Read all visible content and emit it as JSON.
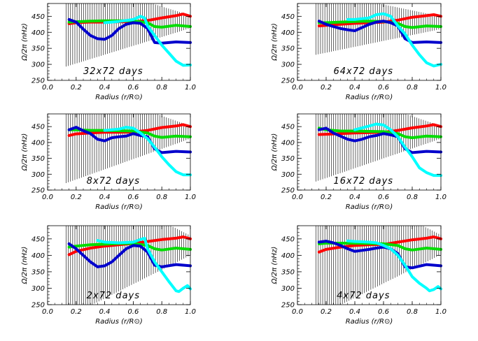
{
  "chart_data": [
    {
      "type": "line",
      "label": "32x72 days",
      "xlabel": "Radius (r/R⊙)",
      "ylabel": "Ω/2π (nHz)",
      "xlim": [
        0.0,
        1.0
      ],
      "ylim": [
        250,
        490
      ],
      "xticks": [
        "0.0",
        "0.2",
        "0.4",
        "0.6",
        "0.8",
        "1.0"
      ],
      "yticks": [
        "250",
        "300",
        "350",
        "400",
        "450"
      ],
      "series": [
        {
          "color": "#ff0000",
          "x": [
            0.15,
            0.2,
            0.3,
            0.4,
            0.5,
            0.6,
            0.7,
            0.8,
            0.9,
            0.95,
            1.0
          ],
          "y": [
            427,
            430,
            432,
            432,
            433,
            433,
            437,
            445,
            452,
            457,
            450
          ]
        },
        {
          "color": "#00dd00",
          "x": [
            0.15,
            0.2,
            0.3,
            0.4,
            0.5,
            0.6,
            0.7,
            0.75,
            0.8,
            0.9,
            1.0
          ],
          "y": [
            432,
            433,
            435,
            436,
            436,
            436,
            430,
            418,
            416,
            422,
            418
          ]
        },
        {
          "color": "#0000cc",
          "x": [
            0.15,
            0.2,
            0.25,
            0.3,
            0.35,
            0.4,
            0.45,
            0.5,
            0.55,
            0.6,
            0.65,
            0.7,
            0.75,
            0.8,
            0.9,
            1.0
          ],
          "y": [
            440,
            432,
            410,
            390,
            380,
            378,
            390,
            412,
            425,
            430,
            428,
            412,
            368,
            366,
            370,
            368
          ]
        },
        {
          "color": "#00ffff",
          "x": [
            0.4,
            0.5,
            0.6,
            0.65,
            0.68,
            0.7,
            0.75,
            0.8,
            0.85,
            0.9,
            0.95,
            1.0
          ],
          "y": [
            430,
            434,
            440,
            450,
            445,
            420,
            390,
            360,
            335,
            310,
            297,
            298
          ]
        }
      ],
      "band": {
        "x_start": 0.13,
        "x_end": 1.0,
        "center": 433,
        "halfwidth_start": 140,
        "halfwidth_end": 20
      }
    },
    {
      "type": "line",
      "label": "64x72 days",
      "xlabel": "Radius (r/R⊙)",
      "ylabel": "Ω/2π (nHz)",
      "xlim": [
        0.0,
        1.0
      ],
      "ylim": [
        250,
        490
      ],
      "xticks": [
        "0.0",
        "0.2",
        "0.4",
        "0.6",
        "0.8",
        "1.0"
      ],
      "yticks": [
        "250",
        "300",
        "350",
        "400",
        "450"
      ],
      "series": [
        {
          "color": "#ff0000",
          "x": [
            0.15,
            0.2,
            0.3,
            0.4,
            0.5,
            0.6,
            0.7,
            0.8,
            0.9,
            0.95,
            1.0
          ],
          "y": [
            420,
            422,
            425,
            428,
            430,
            432,
            438,
            447,
            452,
            455,
            450
          ]
        },
        {
          "color": "#00dd00",
          "x": [
            0.15,
            0.2,
            0.3,
            0.4,
            0.5,
            0.6,
            0.7,
            0.75,
            0.8,
            0.9,
            1.0
          ],
          "y": [
            430,
            430,
            432,
            434,
            435,
            434,
            428,
            418,
            415,
            420,
            418
          ]
        },
        {
          "color": "#0000cc",
          "x": [
            0.15,
            0.2,
            0.25,
            0.3,
            0.35,
            0.4,
            0.45,
            0.5,
            0.55,
            0.6,
            0.65,
            0.7,
            0.75,
            0.8,
            0.9,
            1.0
          ],
          "y": [
            435,
            425,
            418,
            412,
            408,
            405,
            415,
            425,
            432,
            435,
            430,
            420,
            380,
            368,
            370,
            368
          ]
        },
        {
          "color": "#00ffff",
          "x": [
            0.35,
            0.4,
            0.5,
            0.55,
            0.6,
            0.65,
            0.7,
            0.75,
            0.8,
            0.85,
            0.9,
            0.95,
            1.0
          ],
          "y": [
            440,
            440,
            445,
            455,
            458,
            450,
            420,
            395,
            360,
            330,
            305,
            295,
            300
          ]
        }
      ],
      "band": {
        "x_start": 0.13,
        "x_end": 1.0,
        "center": 430,
        "halfwidth_start": 100,
        "halfwidth_end": 20
      }
    },
    {
      "type": "line",
      "label": "8x72 days",
      "xlabel": "Radius (r/R⊙)",
      "ylabel": "Ω/2π (nHz)",
      "xlim": [
        0.0,
        1.0
      ],
      "ylim": [
        250,
        490
      ],
      "xticks": [
        "0.0",
        "0.2",
        "0.4",
        "0.6",
        "0.8",
        "1.0"
      ],
      "yticks": [
        "250",
        "300",
        "350",
        "400",
        "450"
      ],
      "series": [
        {
          "color": "#ff0000",
          "x": [
            0.15,
            0.2,
            0.3,
            0.4,
            0.5,
            0.6,
            0.7,
            0.8,
            0.9,
            0.95,
            1.0
          ],
          "y": [
            422,
            427,
            430,
            432,
            432,
            433,
            438,
            447,
            452,
            456,
            450
          ]
        },
        {
          "color": "#00dd00",
          "x": [
            0.15,
            0.2,
            0.3,
            0.4,
            0.5,
            0.6,
            0.7,
            0.75,
            0.8,
            0.9,
            1.0
          ],
          "y": [
            440,
            440,
            438,
            438,
            437,
            436,
            430,
            420,
            416,
            420,
            418
          ]
        },
        {
          "color": "#0000cc",
          "x": [
            0.15,
            0.2,
            0.25,
            0.3,
            0.35,
            0.4,
            0.45,
            0.5,
            0.55,
            0.6,
            0.65,
            0.7,
            0.75,
            0.8,
            0.9,
            1.0
          ],
          "y": [
            440,
            448,
            437,
            428,
            410,
            405,
            415,
            418,
            420,
            428,
            422,
            418,
            380,
            368,
            372,
            370
          ]
        },
        {
          "color": "#00ffff",
          "x": [
            0.4,
            0.5,
            0.55,
            0.6,
            0.65,
            0.7,
            0.75,
            0.8,
            0.85,
            0.9,
            0.95,
            1.0
          ],
          "y": [
            438,
            442,
            448,
            445,
            430,
            412,
            385,
            355,
            330,
            308,
            298,
            298
          ]
        }
      ],
      "band": {
        "x_start": 0.13,
        "x_end": 1.0,
        "center": 432,
        "halfwidth_start": 160,
        "halfwidth_end": 20
      }
    },
    {
      "type": "line",
      "label": "16x72 days",
      "xlabel": "Radius (r/R⊙)",
      "ylabel": "Ω/2π (nHz)",
      "xlim": [
        0.0,
        1.0
      ],
      "ylim": [
        250,
        490
      ],
      "xticks": [
        "0.0",
        "0.2",
        "0.4",
        "0.6",
        "0.8",
        "1.0"
      ],
      "yticks": [
        "250",
        "300",
        "350",
        "400",
        "450"
      ],
      "series": [
        {
          "color": "#ff0000",
          "x": [
            0.15,
            0.2,
            0.3,
            0.4,
            0.5,
            0.6,
            0.7,
            0.8,
            0.9,
            0.95,
            1.0
          ],
          "y": [
            425,
            426,
            428,
            430,
            431,
            432,
            438,
            446,
            452,
            456,
            450
          ]
        },
        {
          "color": "#00dd00",
          "x": [
            0.15,
            0.2,
            0.3,
            0.4,
            0.5,
            0.6,
            0.7,
            0.75,
            0.8,
            0.9,
            1.0
          ],
          "y": [
            445,
            440,
            436,
            436,
            435,
            434,
            428,
            418,
            415,
            420,
            418
          ]
        },
        {
          "color": "#0000cc",
          "x": [
            0.15,
            0.2,
            0.25,
            0.3,
            0.35,
            0.4,
            0.45,
            0.5,
            0.55,
            0.6,
            0.65,
            0.7,
            0.75,
            0.8,
            0.9,
            1.0
          ],
          "y": [
            440,
            445,
            430,
            420,
            410,
            405,
            410,
            418,
            422,
            428,
            424,
            418,
            380,
            368,
            372,
            370
          ]
        },
        {
          "color": "#00ffff",
          "x": [
            0.4,
            0.5,
            0.55,
            0.6,
            0.65,
            0.7,
            0.75,
            0.8,
            0.85,
            0.9,
            0.95,
            1.0
          ],
          "y": [
            440,
            452,
            458,
            455,
            440,
            418,
            385,
            355,
            320,
            305,
            296,
            296
          ]
        }
      ],
      "band": {
        "x_start": 0.13,
        "x_end": 1.0,
        "center": 432,
        "halfwidth_start": 155,
        "halfwidth_end": 20
      }
    },
    {
      "type": "line",
      "label": "2x72 days",
      "xlabel": "Radius (r/R⊙)",
      "ylabel": "Ω/2π (nHz)",
      "xlim": [
        0.0,
        1.0
      ],
      "ylim": [
        250,
        490
      ],
      "xticks": [
        "0.0",
        "0.2",
        "0.4",
        "0.6",
        "0.8",
        "1.0"
      ],
      "yticks": [
        "250",
        "300",
        "350",
        "400",
        "450"
      ],
      "series": [
        {
          "color": "#ff0000",
          "x": [
            0.15,
            0.2,
            0.3,
            0.4,
            0.5,
            0.6,
            0.7,
            0.8,
            0.9,
            0.95,
            1.0
          ],
          "y": [
            402,
            412,
            422,
            428,
            432,
            436,
            442,
            448,
            452,
            456,
            450
          ]
        },
        {
          "color": "#00dd00",
          "x": [
            0.15,
            0.2,
            0.3,
            0.4,
            0.5,
            0.6,
            0.7,
            0.75,
            0.8,
            0.9,
            1.0
          ],
          "y": [
            425,
            428,
            432,
            434,
            436,
            436,
            430,
            420,
            416,
            422,
            418
          ]
        },
        {
          "color": "#0000cc",
          "x": [
            0.15,
            0.2,
            0.25,
            0.3,
            0.35,
            0.4,
            0.45,
            0.5,
            0.55,
            0.6,
            0.65,
            0.7,
            0.75,
            0.8,
            0.9,
            1.0
          ],
          "y": [
            435,
            420,
            400,
            380,
            365,
            368,
            380,
            400,
            420,
            430,
            428,
            410,
            370,
            365,
            372,
            368
          ]
        },
        {
          "color": "#00ffff",
          "x": [
            0.35,
            0.4,
            0.5,
            0.6,
            0.65,
            0.68,
            0.7,
            0.75,
            0.8,
            0.85,
            0.9,
            0.92,
            0.95,
            0.98,
            1.0
          ],
          "y": [
            445,
            440,
            438,
            440,
            448,
            452,
            420,
            380,
            350,
            320,
            292,
            290,
            300,
            308,
            298
          ]
        }
      ],
      "band": {
        "x_start": 0.13,
        "x_end": 1.0,
        "center": 430,
        "halfwidth_start": 220,
        "halfwidth_end": 30
      }
    },
    {
      "type": "line",
      "label": "4x72 days",
      "xlabel": "Radius (r/R⊙)",
      "ylabel": "Ω/2π (nHz)",
      "xlim": [
        0.0,
        1.0
      ],
      "ylim": [
        250,
        490
      ],
      "xticks": [
        "0.0",
        "0.2",
        "0.4",
        "0.6",
        "0.8",
        "1.0"
      ],
      "yticks": [
        "250",
        "300",
        "350",
        "400",
        "450"
      ],
      "series": [
        {
          "color": "#ff0000",
          "x": [
            0.15,
            0.2,
            0.3,
            0.4,
            0.5,
            0.6,
            0.7,
            0.8,
            0.9,
            0.95,
            1.0
          ],
          "y": [
            410,
            418,
            425,
            430,
            432,
            433,
            440,
            447,
            452,
            456,
            450
          ]
        },
        {
          "color": "#00dd00",
          "x": [
            0.15,
            0.2,
            0.3,
            0.4,
            0.5,
            0.6,
            0.7,
            0.75,
            0.8,
            0.9,
            1.0
          ],
          "y": [
            435,
            437,
            437,
            437,
            436,
            435,
            430,
            420,
            416,
            422,
            418
          ]
        },
        {
          "color": "#0000cc",
          "x": [
            0.15,
            0.2,
            0.25,
            0.3,
            0.35,
            0.4,
            0.45,
            0.5,
            0.55,
            0.6,
            0.65,
            0.7,
            0.75,
            0.8,
            0.9,
            1.0
          ],
          "y": [
            440,
            443,
            438,
            430,
            420,
            412,
            415,
            418,
            422,
            425,
            420,
            405,
            365,
            362,
            372,
            368
          ]
        },
        {
          "color": "#00ffff",
          "x": [
            0.35,
            0.4,
            0.5,
            0.55,
            0.6,
            0.65,
            0.7,
            0.75,
            0.8,
            0.85,
            0.9,
            0.92,
            0.95,
            0.98,
            1.0
          ],
          "y": [
            444,
            442,
            440,
            438,
            430,
            420,
            400,
            370,
            335,
            315,
            300,
            292,
            296,
            305,
            298
          ]
        }
      ],
      "band": {
        "x_start": 0.13,
        "x_end": 1.0,
        "center": 432,
        "halfwidth_start": 220,
        "halfwidth_end": 30
      }
    }
  ]
}
